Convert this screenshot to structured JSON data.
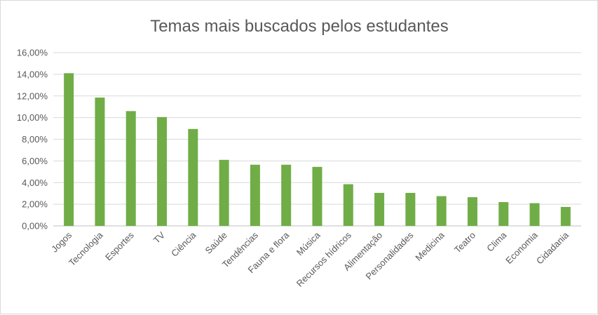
{
  "chart_data": {
    "type": "bar",
    "title": "Temas mais buscados pelos estudantes",
    "xlabel": "",
    "ylabel": "",
    "categories": [
      "Jogos",
      "Tecnologia",
      "Esportes",
      "TV",
      "Ciência",
      "Saúde",
      "Tendências",
      "Fauna e flora",
      "Música",
      "Recursos hídricos",
      "Alimentação",
      "Personalidades",
      "Medicina",
      "Teatro",
      "Clima",
      "Economia",
      "Cidadania"
    ],
    "values": [
      14.1,
      11.85,
      10.6,
      10.05,
      8.95,
      6.1,
      5.65,
      5.65,
      5.45,
      3.85,
      3.05,
      3.05,
      2.75,
      2.65,
      2.2,
      2.1,
      1.75
    ],
    "ylim": [
      0,
      16
    ],
    "yticks": [
      "0,00%",
      "2,00%",
      "4,00%",
      "6,00%",
      "8,00%",
      "10,00%",
      "12,00%",
      "14,00%",
      "16,00%"
    ],
    "grid": true,
    "legend": "none",
    "bar_color": "#70ad47"
  }
}
